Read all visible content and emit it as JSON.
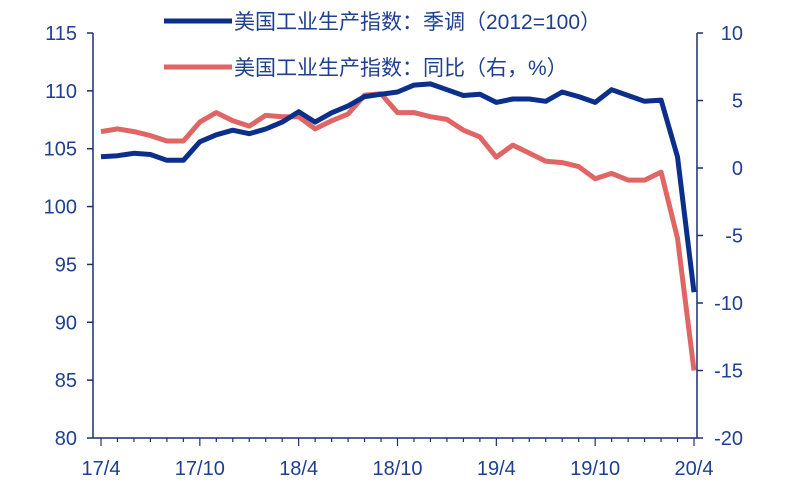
{
  "chart_data": {
    "type": "line",
    "x": [
      "17/4",
      "17/5",
      "17/6",
      "17/7",
      "17/8",
      "17/9",
      "17/10",
      "17/11",
      "17/12",
      "18/1",
      "18/2",
      "18/3",
      "18/4",
      "18/5",
      "18/6",
      "18/7",
      "18/8",
      "18/9",
      "18/10",
      "18/11",
      "18/12",
      "19/1",
      "19/2",
      "19/3",
      "19/4",
      "19/5",
      "19/6",
      "19/7",
      "19/8",
      "19/9",
      "19/10",
      "19/11",
      "19/12",
      "20/1",
      "20/2",
      "20/3",
      "20/4"
    ],
    "x_ticks": [
      "17/4",
      "17/10",
      "18/4",
      "18/10",
      "19/4",
      "19/10",
      "20/4"
    ],
    "ylim_left": [
      80,
      115
    ],
    "yticks_left": [
      "115",
      "110",
      "105",
      "100",
      "95",
      "90",
      "85",
      "80"
    ],
    "ylim_right": [
      -20,
      10
    ],
    "yticks_right": [
      "10",
      "5",
      "0",
      "-5",
      "-10",
      "-15",
      "-20"
    ],
    "grid": false,
    "legend_position": "top",
    "series": [
      {
        "name": "美国工业生产指数：季调（2012=100）",
        "axis": "left",
        "color": "#0b2f8a",
        "values": [
          104.3,
          104.4,
          104.6,
          104.5,
          104.0,
          104.0,
          105.6,
          106.2,
          106.6,
          106.3,
          106.7,
          107.3,
          108.2,
          107.3,
          108.1,
          108.7,
          109.5,
          109.7,
          109.9,
          110.5,
          110.6,
          110.1,
          109.6,
          109.7,
          109.0,
          109.3,
          109.3,
          109.1,
          109.9,
          109.5,
          109.0,
          110.1,
          109.6,
          109.1,
          109.2,
          104.3,
          92.6
        ]
      },
      {
        "name": "美国工业生产指数：同比（右，%）",
        "axis": "right",
        "color": "#e06666",
        "values": [
          2.7,
          2.9,
          2.7,
          2.4,
          2.0,
          2.0,
          3.4,
          4.1,
          3.5,
          3.1,
          3.9,
          3.8,
          3.8,
          2.9,
          3.5,
          4.0,
          5.4,
          5.5,
          4.1,
          4.1,
          3.8,
          3.6,
          2.8,
          2.3,
          0.8,
          1.7,
          1.1,
          0.5,
          0.4,
          0.1,
          -0.8,
          -0.4,
          -0.9,
          -0.9,
          -0.3,
          -5.2,
          -15.0
        ]
      }
    ]
  }
}
